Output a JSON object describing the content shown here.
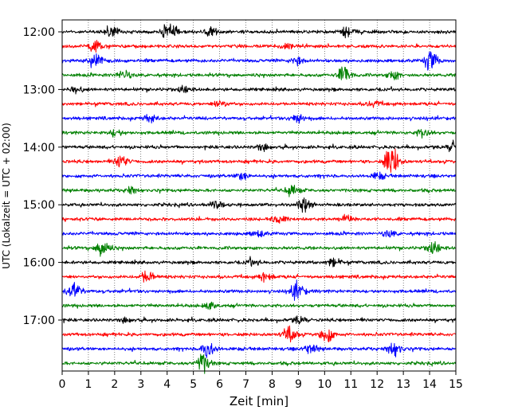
{
  "chart_data": {
    "type": "line",
    "title": "",
    "xlabel": "Zeit  [min]",
    "ylabel": "UTC (Lokalzeit = UTC + 02:00)",
    "xlim": [
      0,
      15
    ],
    "x_ticks": [
      0,
      1,
      2,
      3,
      4,
      5,
      6,
      7,
      8,
      9,
      10,
      11,
      12,
      13,
      14,
      15
    ],
    "y_tick_labels": [
      "12:00",
      "13:00",
      "14:00",
      "15:00",
      "16:00",
      "17:00"
    ],
    "grid": "vertical dotted",
    "trace_colors": [
      "#000000",
      "#ff0000",
      "#0000ff",
      "#008000"
    ],
    "series": [
      {
        "start": "12:00",
        "events": [
          [
            4.0,
            1.0
          ],
          [
            1.8,
            0.6
          ],
          [
            5.6,
            0.5
          ],
          [
            10.8,
            0.5
          ]
        ]
      },
      {
        "start": "12:15",
        "events": [
          [
            1.2,
            0.6
          ],
          [
            8.5,
            0.3
          ]
        ]
      },
      {
        "start": "12:30",
        "events": [
          [
            1.2,
            0.8
          ],
          [
            14.0,
            1.0
          ],
          [
            8.9,
            0.4
          ]
        ]
      },
      {
        "start": "12:45",
        "events": [
          [
            10.7,
            0.9
          ],
          [
            2.3,
            0.5
          ],
          [
            12.6,
            0.4
          ]
        ]
      },
      {
        "start": "13:00",
        "events": [
          [
            0.5,
            0.3
          ],
          [
            4.6,
            0.3
          ]
        ]
      },
      {
        "start": "13:15",
        "events": [
          [
            6.0,
            0.4
          ],
          [
            11.8,
            0.3
          ]
        ]
      },
      {
        "start": "13:30",
        "events": [
          [
            8.9,
            0.5
          ],
          [
            3.3,
            0.4
          ]
        ]
      },
      {
        "start": "13:45",
        "events": [
          [
            13.7,
            0.4
          ],
          [
            2.0,
            0.3
          ]
        ]
      },
      {
        "start": "14:00",
        "events": [
          [
            14.9,
            0.6
          ],
          [
            7.6,
            0.3
          ]
        ]
      },
      {
        "start": "14:15",
        "events": [
          [
            12.5,
            1.8
          ],
          [
            2.2,
            0.6
          ]
        ]
      },
      {
        "start": "14:30",
        "events": [
          [
            6.8,
            0.4
          ],
          [
            12.0,
            0.3
          ]
        ]
      },
      {
        "start": "14:45",
        "events": [
          [
            8.7,
            0.6
          ],
          [
            2.6,
            0.3
          ]
        ]
      },
      {
        "start": "15:00",
        "events": [
          [
            9.2,
            0.7
          ],
          [
            5.8,
            0.4
          ]
        ]
      },
      {
        "start": "15:15",
        "events": [
          [
            8.2,
            0.4
          ],
          [
            10.8,
            0.3
          ]
        ]
      },
      {
        "start": "15:30",
        "events": [
          [
            7.4,
            0.3
          ],
          [
            12.4,
            0.3
          ]
        ]
      },
      {
        "start": "15:45",
        "events": [
          [
            1.5,
            0.9
          ],
          [
            14.1,
            0.6
          ]
        ]
      },
      {
        "start": "16:00",
        "events": [
          [
            10.3,
            0.4
          ],
          [
            7.2,
            0.3
          ]
        ]
      },
      {
        "start": "16:15",
        "events": [
          [
            3.2,
            0.6
          ],
          [
            7.7,
            0.4
          ]
        ]
      },
      {
        "start": "16:30",
        "events": [
          [
            8.9,
            0.9
          ],
          [
            0.4,
            0.9
          ]
        ]
      },
      {
        "start": "16:45",
        "events": [
          [
            5.6,
            0.3
          ]
        ]
      },
      {
        "start": "17:00",
        "events": [
          [
            9.0,
            0.3
          ],
          [
            2.4,
            0.2
          ]
        ]
      },
      {
        "start": "17:15",
        "events": [
          [
            8.6,
            0.9
          ],
          [
            10.0,
            0.9
          ]
        ]
      },
      {
        "start": "17:30",
        "events": [
          [
            5.5,
            0.9
          ],
          [
            12.6,
            0.8
          ],
          [
            9.4,
            0.5
          ]
        ]
      },
      {
        "start": "17:45",
        "events": [
          [
            5.3,
            1.0
          ]
        ]
      }
    ]
  }
}
